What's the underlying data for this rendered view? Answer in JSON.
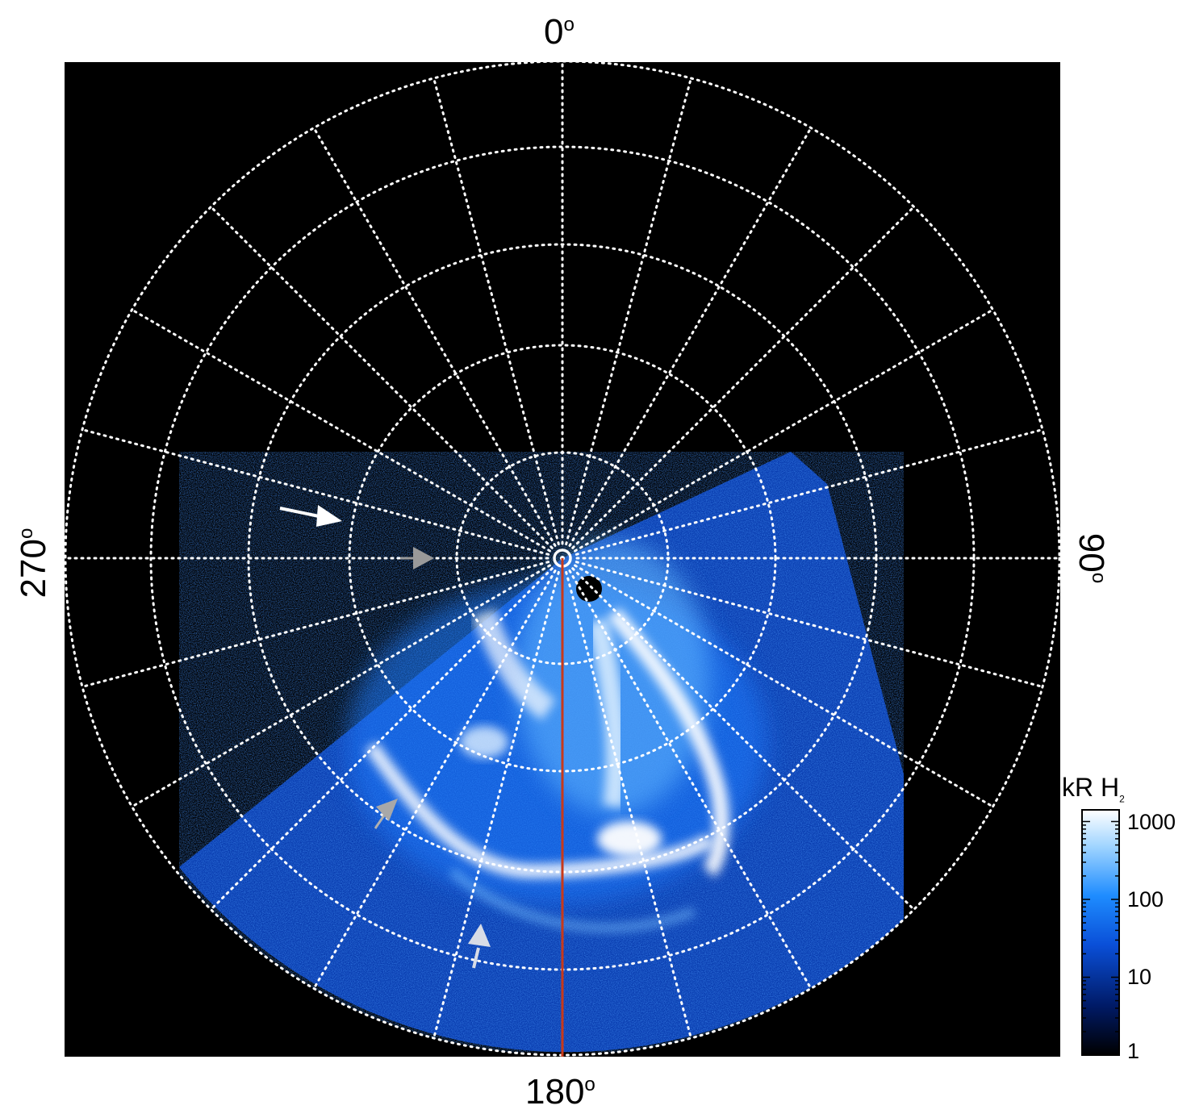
{
  "image": {
    "description_kind": "polar projection of ultraviolet auroral emission with azimuth grid",
    "labels": {
      "top": "0",
      "right": "90",
      "bottom": "180",
      "left": "270",
      "degree_symbol": "o"
    },
    "colorbar": {
      "title": "kR H",
      "title_subscript": "2",
      "ticks": [
        "1000",
        "100",
        "10",
        "1"
      ],
      "scale": "log",
      "colors": [
        "#000000",
        "#001a66",
        "#0a4fd8",
        "#1e8cff",
        "#9fd4ff",
        "#ffffff"
      ]
    },
    "colors": {
      "background": "#000000",
      "grid": "#ffffff",
      "meridian_line": "#c8391a",
      "arrow_white": "#ffffff",
      "arrow_gray": "#9a9a9a",
      "arrow_light": "#d8dce6"
    }
  }
}
